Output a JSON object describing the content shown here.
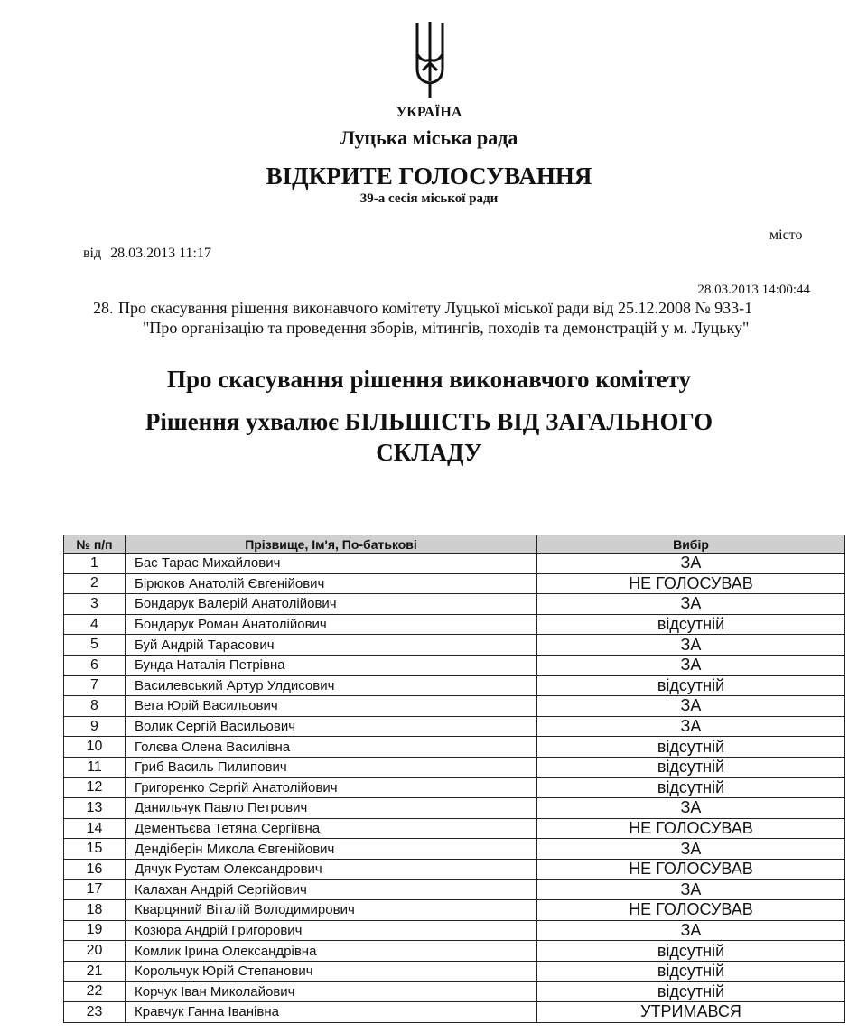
{
  "header": {
    "country": "УКРАЇНА",
    "council": "Луцька міська рада",
    "vote_type": "ВІДКРИТЕ ГОЛОСУВАННЯ",
    "session": "39-а сесія міської ради",
    "city": "місто",
    "from_label": "від",
    "from_datetime": "28.03.2013 11:17"
  },
  "question": {
    "timestamp": "28.03.2013 14:00:44",
    "number": "28.",
    "line1": "Про скасування рішення виконавчого комітету Луцької міської ради від 25.12.2008 № 933-1",
    "line2": "\"Про організацію та проведення зборів, мітингів, походів та демонстрацій у м. Луцьку\""
  },
  "heading": {
    "line1": "Про скасування рішення виконавчого комітету",
    "line2": "Рішення ухвалює БІЛЬШІСТЬ ВІД ЗАГАЛЬНОГО",
    "line3": "СКЛАДУ"
  },
  "table": {
    "columns": [
      "№ п/п",
      "Прізвище, Ім'я, По-батькові",
      "Вибір"
    ],
    "rows": [
      [
        "1",
        "Бас Тарас Михайлович",
        "ЗА"
      ],
      [
        "2",
        "Бірюков Анатолій Євгенійович",
        "НЕ ГОЛОСУВАВ"
      ],
      [
        "3",
        "Бондарук Валерій Анатолійович",
        "ЗА"
      ],
      [
        "4",
        "Бондарук Роман Анатолійович",
        "відсутній"
      ],
      [
        "5",
        "Буй Андрій Тарасович",
        "ЗА"
      ],
      [
        "6",
        "Бунда Наталія Петрівна",
        "ЗА"
      ],
      [
        "7",
        "Василевський Артур Улдисович",
        "відсутній"
      ],
      [
        "8",
        "Вега Юрій Васильович",
        "ЗА"
      ],
      [
        "9",
        "Волик Сергій Васильович",
        "ЗА"
      ],
      [
        "10",
        "Голєва Олена Василівна",
        "відсутній"
      ],
      [
        "11",
        "Гриб Василь Пилипович",
        "відсутній"
      ],
      [
        "12",
        "Григоренко Сергій Анатолійович",
        "відсутній"
      ],
      [
        "13",
        "Данильчук Павло Петрович",
        "ЗА"
      ],
      [
        "14",
        "Дементьєва Тетяна Сергіївна",
        "НЕ ГОЛОСУВАВ"
      ],
      [
        "15",
        "Дендіберін Микола Євгенійович",
        "ЗА"
      ],
      [
        "16",
        "Дячук Рустам Олександрович",
        "НЕ ГОЛОСУВАВ"
      ],
      [
        "17",
        "Калахан Андрій Сергійович",
        "ЗА"
      ],
      [
        "18",
        "Кварцяний Віталій Володимирович",
        "НЕ ГОЛОСУВАВ"
      ],
      [
        "19",
        "Козюра Андрій Григорович",
        "ЗА"
      ],
      [
        "20",
        "Комлик Ірина Олександрівна",
        "відсутній"
      ],
      [
        "21",
        "Корольчук Юрій Степанович",
        "відсутній"
      ],
      [
        "22",
        "Корчук Іван Миколайович",
        "відсутній"
      ],
      [
        "23",
        "Кравчук Ганна Іванівна",
        "УТРИМАВСЯ"
      ]
    ]
  }
}
